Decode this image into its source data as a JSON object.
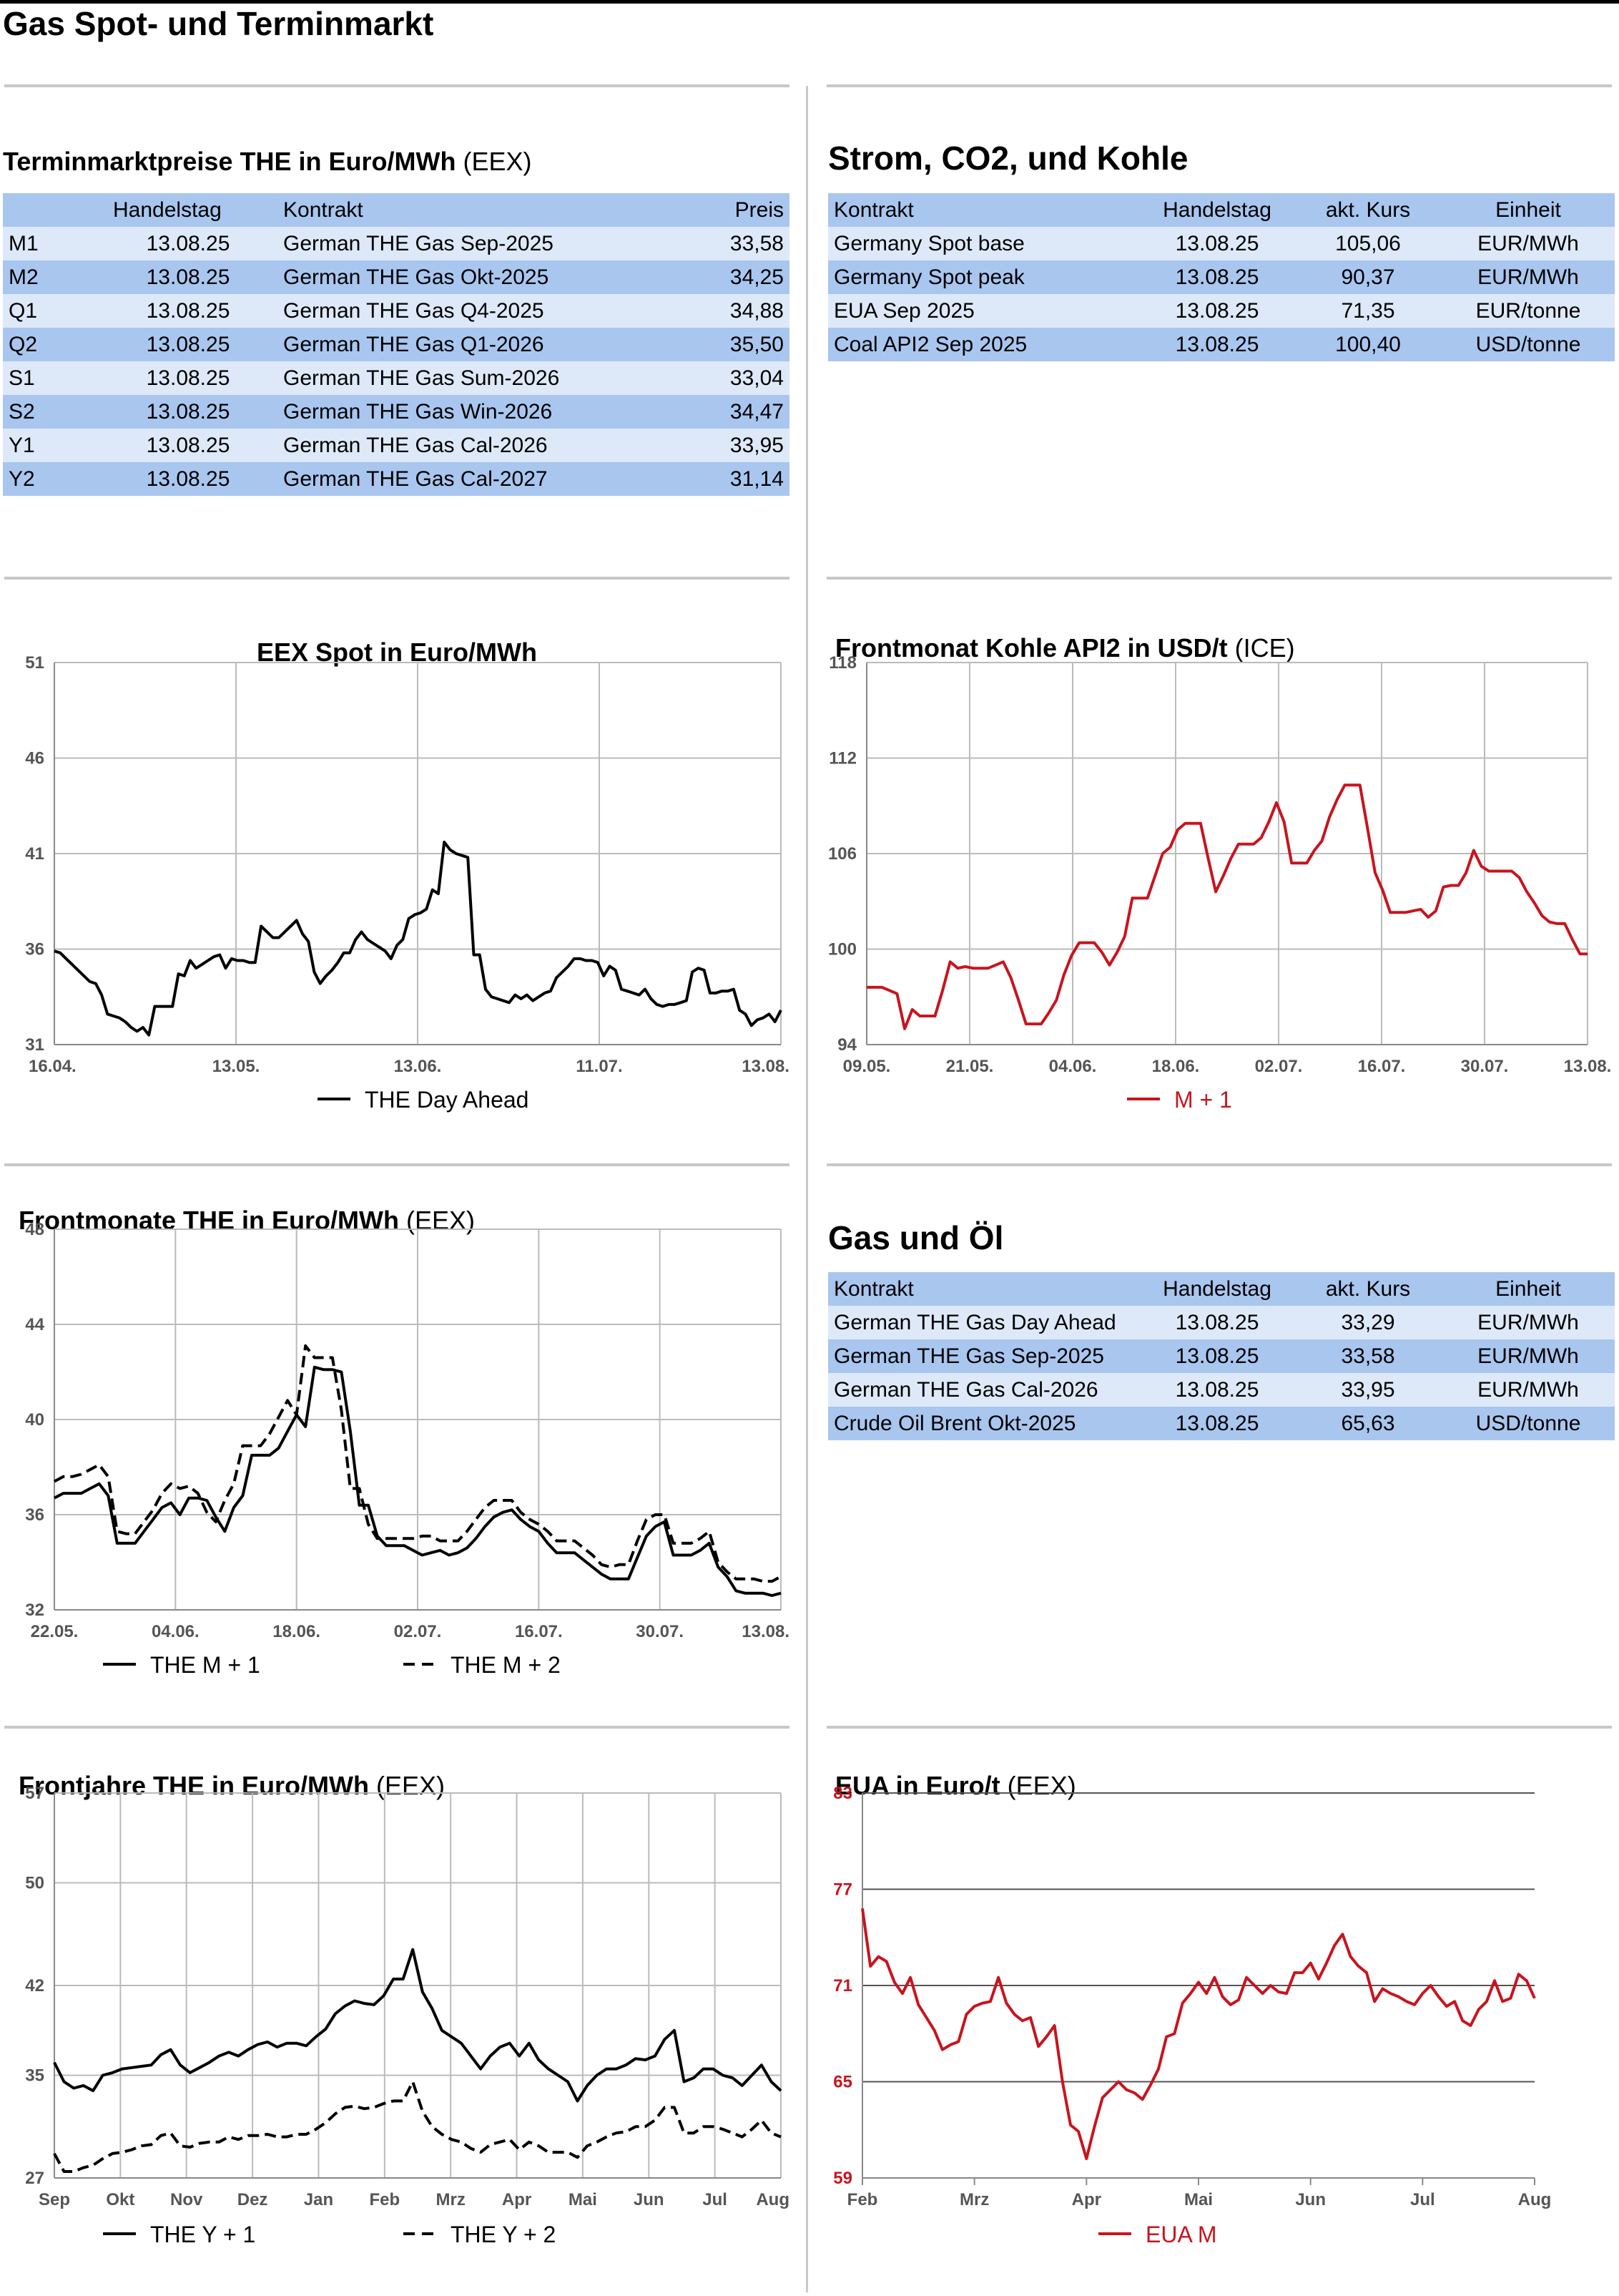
{
  "page_title": "Gas Spot- und Terminmarkt",
  "termin": {
    "title_bold": "Terminmarktpreise THE in Euro/MWh",
    "title_suffix": "(EEX)",
    "headers": [
      "",
      "Handelstag",
      "Kontrakt",
      "Preis"
    ],
    "rows": [
      [
        "M1",
        "13.08.25",
        "German THE Gas Sep-2025",
        "33,58"
      ],
      [
        "M2",
        "13.08.25",
        "German THE Gas Okt-2025",
        "34,25"
      ],
      [
        "Q1",
        "13.08.25",
        "German THE Gas Q4-2025",
        "34,88"
      ],
      [
        "Q2",
        "13.08.25",
        "German THE Gas Q1-2026",
        "35,50"
      ],
      [
        "S1",
        "13.08.25",
        "German THE Gas Sum-2026",
        "33,04"
      ],
      [
        "S2",
        "13.08.25",
        "German THE Gas Win-2026",
        "34,47"
      ],
      [
        "Y1",
        "13.08.25",
        "German THE Gas Cal-2026",
        "33,95"
      ],
      [
        "Y2",
        "13.08.25",
        "German THE Gas Cal-2027",
        "31,14"
      ]
    ]
  },
  "strom": {
    "title": "Strom, CO2, und Kohle",
    "headers": [
      "Kontrakt",
      "Handelstag",
      "akt. Kurs",
      "Einheit"
    ],
    "rows": [
      [
        "Germany Spot base",
        "13.08.25",
        "105,06",
        "EUR/MWh"
      ],
      [
        "Germany Spot peak",
        "13.08.25",
        "90,37",
        "EUR/MWh"
      ],
      [
        "EUA Sep 2025",
        "13.08.25",
        "71,35",
        "EUR/tonne"
      ],
      [
        "Coal API2 Sep 2025",
        "13.08.25",
        "100,40",
        "USD/tonne"
      ]
    ]
  },
  "gasoel": {
    "title": "Gas und Öl",
    "headers": [
      "Kontrakt",
      "Handelstag",
      "akt. Kurs",
      "Einheit"
    ],
    "rows": [
      [
        "German THE Gas Day Ahead",
        "13.08.25",
        "33,29",
        "EUR/MWh"
      ],
      [
        "German THE Gas Sep-2025",
        "13.08.25",
        "33,58",
        "EUR/MWh"
      ],
      [
        "German THE Gas Cal-2026",
        "13.08.25",
        "33,95",
        "EUR/MWh"
      ],
      [
        "Crude Oil Brent Okt-2025",
        "13.08.25",
        "65,63",
        "USD/tonne"
      ]
    ]
  },
  "chart_data": [
    {
      "id": "spot",
      "type": "line",
      "title": "EEX Spot in Euro/MWh",
      "title_suffix": "",
      "ylim": [
        31,
        51
      ],
      "yticks": [
        "31",
        "36",
        "41",
        "46",
        "51"
      ],
      "xticks": [
        "16.04.",
        "13.05.",
        "13.06.",
        "11.07.",
        "13.08."
      ],
      "grid": true,
      "legend": "bottom",
      "series": [
        {
          "name": "THE Day Ahead",
          "color": "#000000",
          "dash": "",
          "values": [
            35.9,
            35.8,
            35.5,
            35.2,
            34.9,
            34.6,
            34.3,
            34.2,
            33.6,
            32.6,
            32.5,
            32.4,
            32.2,
            31.9,
            31.7,
            31.9,
            31.5,
            33.0,
            33.0,
            33.0,
            33.0,
            34.7,
            34.6,
            35.4,
            35.0,
            35.2,
            35.4,
            35.6,
            35.7,
            35.0,
            35.5,
            35.4,
            35.4,
            35.3,
            35.3,
            37.2,
            36.9,
            36.6,
            36.6,
            36.9,
            37.2,
            37.5,
            36.8,
            36.4,
            34.8,
            34.2,
            34.6,
            34.9,
            35.3,
            35.8,
            35.8,
            36.5,
            36.9,
            36.5,
            36.3,
            36.1,
            35.9,
            35.5,
            36.2,
            36.5,
            37.6,
            37.8,
            37.9,
            38.1,
            39.1,
            38.9,
            41.6,
            41.2,
            41.0,
            40.9,
            40.8,
            35.7,
            35.7,
            33.9,
            33.5,
            33.4,
            33.3,
            33.2,
            33.6,
            33.4,
            33.6,
            33.3,
            33.5,
            33.7,
            33.8,
            34.5,
            34.8,
            35.1,
            35.5,
            35.5,
            35.4,
            35.4,
            35.3,
            34.6,
            35.1,
            34.9,
            33.9,
            33.8,
            33.7,
            33.6,
            33.9,
            33.4,
            33.1,
            33.0,
            33.1,
            33.1,
            33.2,
            33.3,
            34.8,
            35.0,
            34.9,
            33.7,
            33.7,
            33.8,
            33.8,
            33.9,
            32.8,
            32.6,
            32.0,
            32.3,
            32.4,
            32.6,
            32.2,
            32.8
          ]
        }
      ]
    },
    {
      "id": "kohle",
      "type": "line",
      "title": "Frontmonat Kohle API2 in USD/t",
      "title_suffix": "(ICE)",
      "ylim": [
        94,
        118
      ],
      "yticks": [
        "94",
        "100",
        "106",
        "112",
        "118"
      ],
      "xticks": [
        "09.05.",
        "21.05.",
        "04.06.",
        "18.06.",
        "02.07.",
        "16.07.",
        "30.07.",
        "13.08."
      ],
      "grid": true,
      "legend": "bottom",
      "series": [
        {
          "name": "M + 1",
          "color": "#c8141e",
          "dash": "",
          "values": [
            97.6,
            97.6,
            97.6,
            97.4,
            97.2,
            95.0,
            96.2,
            95.8,
            95.8,
            95.8,
            97.4,
            99.2,
            98.8,
            98.9,
            98.8,
            98.8,
            98.8,
            99.0,
            99.2,
            98.2,
            96.8,
            95.3,
            95.3,
            95.3,
            96.0,
            96.8,
            98.4,
            99.6,
            100.4,
            100.4,
            100.4,
            99.8,
            99.0,
            99.8,
            100.8,
            103.2,
            103.2,
            103.2,
            104.6,
            106.0,
            106.4,
            107.5,
            107.9,
            107.9,
            107.9,
            105.7,
            103.6,
            104.6,
            105.7,
            106.6,
            106.6,
            106.6,
            107.0,
            108.0,
            109.2,
            108.0,
            105.4,
            105.4,
            105.4,
            106.2,
            106.8,
            108.3,
            109.4,
            110.3,
            110.3,
            110.3,
            107.6,
            104.8,
            103.7,
            102.3,
            102.3,
            102.3,
            102.4,
            102.5,
            102.0,
            102.4,
            103.9,
            104.0,
            104.0,
            104.8,
            106.2,
            105.2,
            104.9,
            104.9,
            104.9,
            104.9,
            104.5,
            103.6,
            102.9,
            102.1,
            101.7,
            101.6,
            101.6,
            100.6,
            99.7,
            99.7
          ]
        }
      ]
    },
    {
      "id": "frontmonate",
      "type": "line",
      "title": "Frontmonate THE in Euro/MWh",
      "title_suffix": "(EEX)",
      "ylim": [
        32,
        48
      ],
      "yticks": [
        "32",
        "36",
        "40",
        "44",
        "48"
      ],
      "xticks": [
        "22.05.",
        "04.06.",
        "18.06.",
        "02.07.",
        "16.07.",
        "30.07.",
        "13.08."
      ],
      "grid": true,
      "legend": "bottom",
      "series": [
        {
          "name": "THE M + 1",
          "color": "#000000",
          "dash": "",
          "values": [
            36.7,
            36.9,
            36.9,
            36.9,
            37.1,
            37.3,
            36.8,
            34.8,
            34.8,
            34.8,
            35.3,
            35.8,
            36.3,
            36.5,
            36.0,
            36.7,
            36.7,
            36.6,
            35.9,
            35.3,
            36.3,
            36.8,
            38.5,
            38.5,
            38.5,
            38.8,
            39.5,
            40.2,
            39.7,
            42.2,
            42.1,
            42.1,
            42.0,
            39.5,
            36.4,
            36.4,
            35.1,
            34.7,
            34.7,
            34.7,
            34.5,
            34.3,
            34.4,
            34.5,
            34.3,
            34.4,
            34.6,
            35.0,
            35.5,
            35.9,
            36.1,
            36.2,
            35.8,
            35.5,
            35.3,
            34.8,
            34.4,
            34.4,
            34.4,
            34.1,
            33.8,
            33.5,
            33.3,
            33.3,
            33.3,
            34.2,
            35.1,
            35.5,
            35.7,
            34.3,
            34.3,
            34.3,
            34.5,
            34.8,
            33.8,
            33.4,
            32.8,
            32.7,
            32.7,
            32.7,
            32.6,
            32.7
          ]
        },
        {
          "name": "THE M + 2",
          "color": "#000000",
          "dash": "dashed",
          "values": [
            37.4,
            37.6,
            37.6,
            37.7,
            37.9,
            38.1,
            37.6,
            35.3,
            35.2,
            35.2,
            35.7,
            36.2,
            36.9,
            37.3,
            37.1,
            37.2,
            36.9,
            36.1,
            35.7,
            36.6,
            37.3,
            38.9,
            38.9,
            38.9,
            39.4,
            40.1,
            40.8,
            40.2,
            43.1,
            42.6,
            42.6,
            42.6,
            40.4,
            37.1,
            37.1,
            35.6,
            35.0,
            35.0,
            35.0,
            35.0,
            35.0,
            35.1,
            35.1,
            34.9,
            34.9,
            34.9,
            35.3,
            35.8,
            36.3,
            36.6,
            36.6,
            36.6,
            36.1,
            35.8,
            35.6,
            35.3,
            34.9,
            34.9,
            34.9,
            34.6,
            34.3,
            33.9,
            33.8,
            33.9,
            33.9,
            34.9,
            35.8,
            36.0,
            36.0,
            34.8,
            34.8,
            34.8,
            35.0,
            35.3,
            34.0,
            33.6,
            33.3,
            33.3,
            33.3,
            33.2,
            33.2,
            33.4
          ]
        }
      ]
    },
    {
      "id": "frontjahre",
      "type": "line",
      "title": "Frontjahre THE in Euro/MWh",
      "title_suffix": "(EEX)",
      "ylim": [
        27,
        57
      ],
      "yticks": [
        "27",
        "35",
        "42",
        "50",
        "57"
      ],
      "xticks": [
        "Sep",
        "Okt",
        "Nov",
        "Dez",
        "Jan",
        "Feb",
        "Mrz",
        "Apr",
        "Mai",
        "Jun",
        "Jul",
        "Aug"
      ],
      "grid": true,
      "legend": "bottom",
      "series": [
        {
          "name": "THE Y + 1",
          "color": "#000000",
          "dash": "",
          "values": [
            36.0,
            34.5,
            34.0,
            34.2,
            33.8,
            35.0,
            35.2,
            35.5,
            35.6,
            35.7,
            35.8,
            36.6,
            37.0,
            35.8,
            35.2,
            35.6,
            36.0,
            36.5,
            36.8,
            36.5,
            37.0,
            37.4,
            37.6,
            37.2,
            37.5,
            37.5,
            37.3,
            38.0,
            38.6,
            39.8,
            40.4,
            40.8,
            40.6,
            40.5,
            41.2,
            42.5,
            42.5,
            44.8,
            41.5,
            40.2,
            38.5,
            38.0,
            37.5,
            36.5,
            35.5,
            36.5,
            37.2,
            37.5,
            36.5,
            37.5,
            36.2,
            35.5,
            35.0,
            34.5,
            33.0,
            34.2,
            35.0,
            35.5,
            35.5,
            35.8,
            36.3,
            36.2,
            36.5,
            37.8,
            38.5,
            34.5,
            34.8,
            35.5,
            35.5,
            35.0,
            34.8,
            34.2,
            35.0,
            35.8,
            34.5,
            33.8
          ]
        },
        {
          "name": "THE Y + 2",
          "color": "#000000",
          "dash": "dashed",
          "values": [
            28.9,
            27.5,
            27.5,
            27.8,
            28.0,
            28.5,
            28.9,
            29.0,
            29.2,
            29.5,
            29.6,
            30.3,
            30.5,
            29.5,
            29.4,
            29.7,
            29.8,
            29.8,
            30.2,
            30.0,
            30.3,
            30.3,
            30.4,
            30.2,
            30.2,
            30.4,
            30.4,
            30.8,
            31.3,
            32.0,
            32.5,
            32.6,
            32.4,
            32.5,
            32.8,
            33.0,
            33.0,
            34.5,
            32.2,
            31.0,
            30.4,
            30.0,
            29.8,
            29.3,
            29.0,
            29.6,
            29.8,
            30.0,
            29.2,
            29.8,
            29.5,
            29.0,
            29.0,
            29.0,
            28.6,
            29.5,
            29.8,
            30.2,
            30.5,
            30.6,
            31.0,
            31.0,
            31.5,
            32.5,
            32.5,
            30.5,
            30.5,
            31.0,
            31.0,
            30.8,
            30.5,
            30.2,
            30.8,
            31.5,
            30.5,
            30.2
          ]
        }
      ]
    },
    {
      "id": "eua",
      "type": "line",
      "title": "EUA in Euro/t",
      "title_suffix": "(EEX)",
      "ylim": [
        59,
        83
      ],
      "yticks": [
        "59",
        "65",
        "71",
        "77",
        "83"
      ],
      "xticks": [
        "Feb",
        "Mrz",
        "Apr",
        "Mai",
        "Jun",
        "Jul",
        "Aug"
      ],
      "grid": true,
      "legend": "bottom",
      "series": [
        {
          "name": "EUA M",
          "color": "#c8141e",
          "dash": "",
          "values": [
            75.8,
            72.2,
            72.8,
            72.5,
            71.2,
            70.5,
            71.5,
            69.8,
            69.0,
            68.2,
            67.0,
            67.3,
            67.5,
            69.2,
            69.7,
            69.9,
            70.0,
            71.5,
            69.9,
            69.2,
            68.8,
            69.0,
            67.2,
            67.8,
            68.5,
            65.0,
            62.3,
            61.9,
            60.2,
            62.2,
            64.0,
            64.5,
            65.0,
            64.5,
            64.3,
            63.9,
            64.8,
            65.8,
            67.8,
            68.0,
            69.9,
            70.5,
            71.2,
            70.5,
            71.5,
            70.3,
            69.8,
            70.1,
            71.5,
            71.0,
            70.5,
            71.0,
            70.6,
            70.5,
            71.8,
            71.8,
            72.4,
            71.4,
            72.4,
            73.5,
            74.2,
            72.8,
            72.2,
            71.8,
            70.0,
            70.8,
            70.5,
            70.3,
            70.0,
            69.8,
            70.5,
            71.0,
            70.3,
            69.7,
            70.0,
            68.8,
            68.5,
            69.5,
            70.0,
            71.3,
            70.0,
            70.2,
            71.7,
            71.3,
            70.2
          ]
        }
      ]
    }
  ]
}
